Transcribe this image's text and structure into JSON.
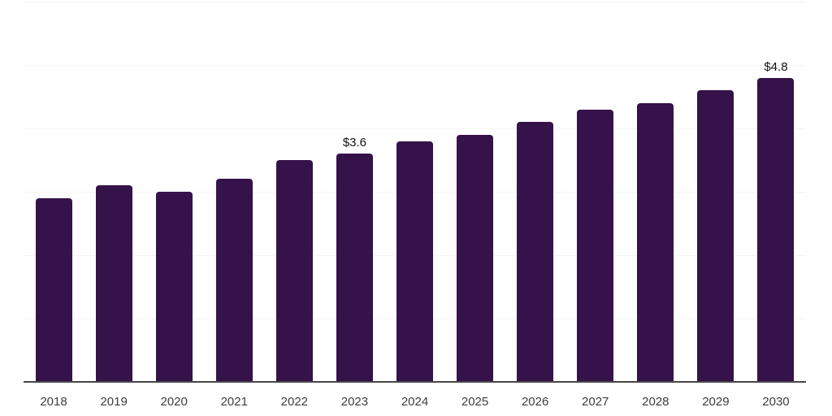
{
  "chart_data": {
    "type": "bar",
    "title": "",
    "xlabel": "",
    "ylabel": "",
    "categories": [
      "2018",
      "2019",
      "2020",
      "2021",
      "2022",
      "2023",
      "2024",
      "2025",
      "2026",
      "2027",
      "2028",
      "2029",
      "2030"
    ],
    "values": [
      2.9,
      3.1,
      3.0,
      3.2,
      3.5,
      3.6,
      3.8,
      3.9,
      4.1,
      4.3,
      4.4,
      4.6,
      4.8
    ],
    "data_labels": {
      "2023": "$3.6",
      "2030": "$4.8"
    },
    "ylim": [
      0,
      6
    ],
    "gridline_step": 1,
    "grid": true,
    "legend": "none",
    "colors": {
      "bar": "#351249",
      "gridline": "#f4f4f4",
      "axis": "#474747",
      "x_label": "#3d3d3d",
      "data_label": "#111111",
      "background": "#ffffff"
    }
  }
}
